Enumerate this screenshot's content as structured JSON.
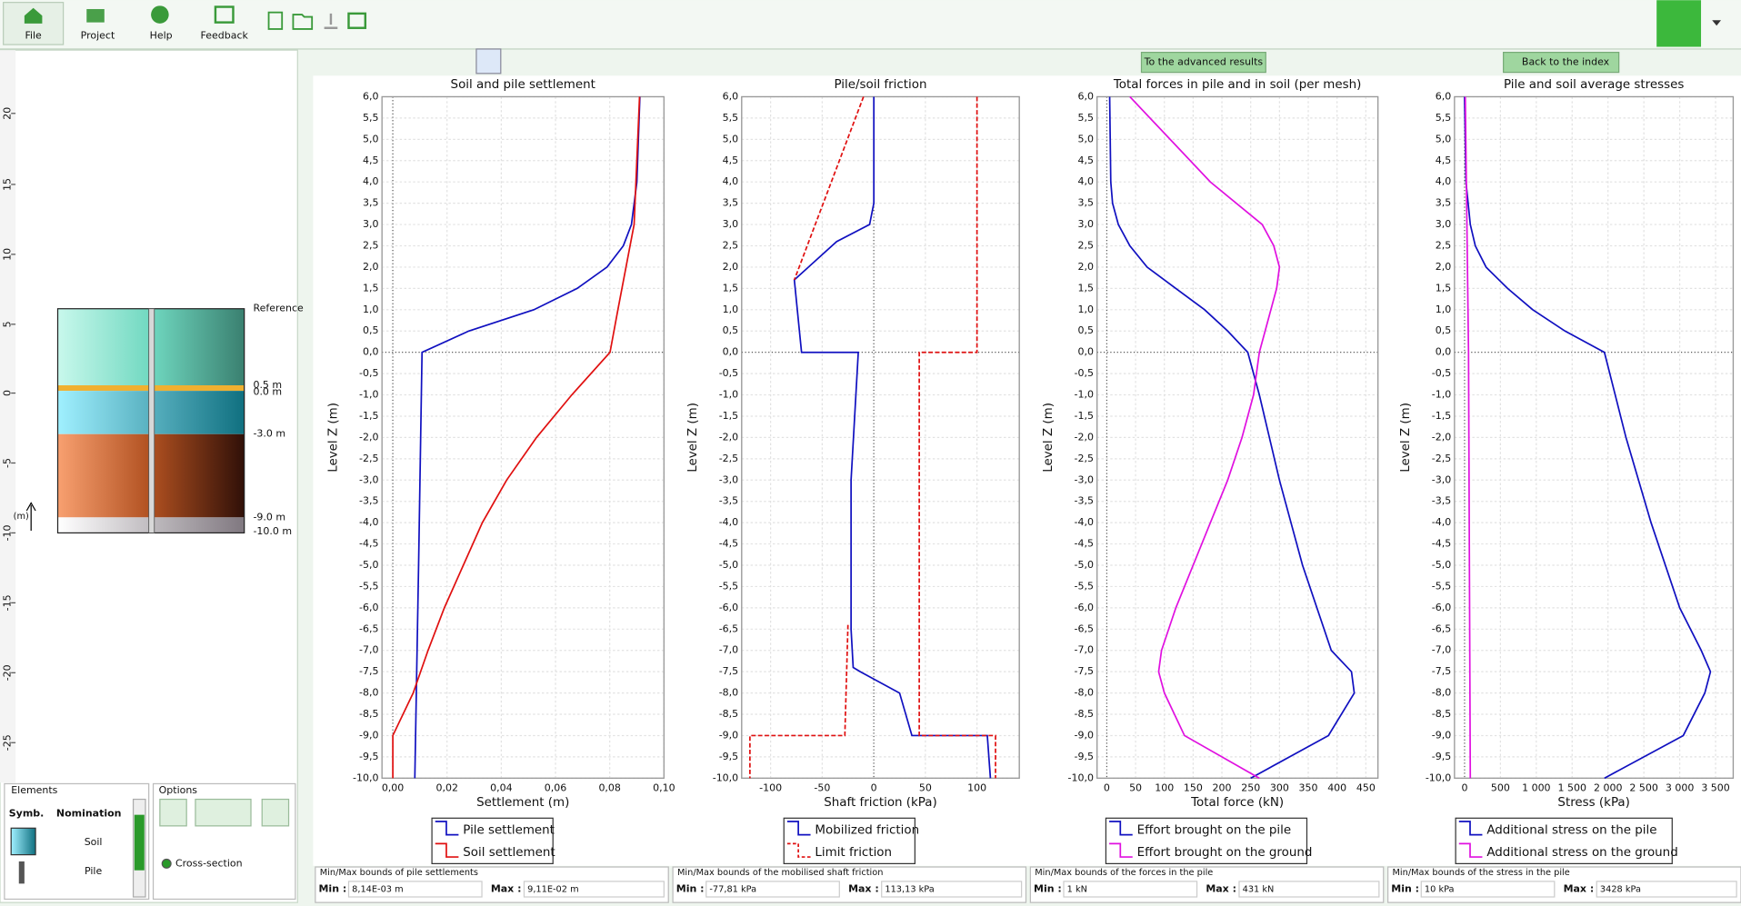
{
  "toolbar": {
    "buttons": [
      "File",
      "Project",
      "Help",
      "Feedback"
    ]
  },
  "buttons": {
    "advanced": "To the advanced results",
    "index": "Back to the index"
  },
  "left_panel": {
    "ruler": [
      "20",
      "15",
      "10",
      "5",
      "0",
      "-5",
      "-10",
      "-15",
      "-20",
      "-25"
    ],
    "profile_labels": [
      "Reference",
      "0.5 m",
      "0.0 m",
      "-3.0 m",
      "-9.0 m",
      "-10.0 m"
    ],
    "axis_unit": "(m)",
    "elements": {
      "title": "Elements",
      "columns": [
        "Symb.",
        "Nomination"
      ],
      "rows": [
        "Soil",
        "Pile"
      ]
    },
    "options": {
      "title": "Options",
      "radio": "Cross-section"
    }
  },
  "level_axis": {
    "label": "Level Z (m)",
    "ylim": [
      -10,
      6
    ],
    "yticks": [
      {
        "value": 6,
        "label": "6,0"
      },
      {
        "value": 5.5,
        "label": "5,5"
      },
      {
        "value": 5,
        "label": "5,0"
      },
      {
        "value": 4.5,
        "label": "4,5"
      },
      {
        "value": 4,
        "label": "4,0"
      },
      {
        "value": 3.5,
        "label": "3,5"
      },
      {
        "value": 3,
        "label": "3,0"
      },
      {
        "value": 2.5,
        "label": "2,5"
      },
      {
        "value": 2,
        "label": "2,0"
      },
      {
        "value": 1.5,
        "label": "1,5"
      },
      {
        "value": 1,
        "label": "1,0"
      },
      {
        "value": 0.5,
        "label": "0,5"
      },
      {
        "value": 0,
        "label": "0,0"
      },
      {
        "value": -0.5,
        "label": "-0,5"
      },
      {
        "value": -1,
        "label": "-1,0"
      },
      {
        "value": -1.5,
        "label": "-1,5"
      },
      {
        "value": -2,
        "label": "-2,0"
      },
      {
        "value": -2.5,
        "label": "-2,5"
      },
      {
        "value": -3,
        "label": "-3,0"
      },
      {
        "value": -3.5,
        "label": "-3,5"
      },
      {
        "value": -4,
        "label": "-4,0"
      },
      {
        "value": -4.5,
        "label": "-4,5"
      },
      {
        "value": -5,
        "label": "-5,0"
      },
      {
        "value": -5.5,
        "label": "-5,5"
      },
      {
        "value": -6,
        "label": "-6,0"
      },
      {
        "value": -6.5,
        "label": "-6,5"
      },
      {
        "value": -7,
        "label": "-7,0"
      },
      {
        "value": -7.5,
        "label": "-7,5"
      },
      {
        "value": -8,
        "label": "-8,0"
      },
      {
        "value": -8.5,
        "label": "-8,5"
      },
      {
        "value": -9,
        "label": "-9,0"
      },
      {
        "value": -9.5,
        "label": "-9,5"
      },
      {
        "value": -10,
        "label": "-10,0"
      }
    ]
  },
  "chart_data": [
    {
      "type": "line",
      "title": "Soil and pile settlement",
      "x_label": "Settlement (m)",
      "xlim": [
        -0.004,
        0.1
      ],
      "xticks": [
        {
          "value": 0,
          "label": "0,00"
        },
        {
          "value": 0.02,
          "label": "0,02"
        },
        {
          "value": 0.04,
          "label": "0,04"
        },
        {
          "value": 0.06,
          "label": "0,06"
        },
        {
          "value": 0.08,
          "label": "0,08"
        },
        {
          "value": 0.1,
          "label": "0,10"
        }
      ],
      "series": [
        {
          "name": "Pile settlement",
          "color": "#1010c0",
          "levels": [
            6,
            4,
            3,
            2.5,
            2,
            1.5,
            1,
            0.5,
            0,
            -5,
            -10
          ],
          "values": [
            0.0911,
            0.09,
            0.088,
            0.085,
            0.079,
            0.068,
            0.052,
            0.028,
            0.0108,
            0.0095,
            0.0081
          ]
        },
        {
          "name": "Soil settlement",
          "color": "#e01010",
          "levels": [
            6,
            3,
            1,
            0,
            -1,
            -2,
            -3,
            -4,
            -5,
            -6,
            -7,
            -8,
            -9,
            -10
          ],
          "values": [
            0.091,
            0.089,
            0.083,
            0.0801,
            0.066,
            0.053,
            0.042,
            0.033,
            0.026,
            0.019,
            0.013,
            0.0075,
            0,
            0
          ]
        }
      ],
      "bounds": {
        "title": "Min/Max bounds of pile settlements",
        "min_label": "Min :",
        "min": "8,14E-03 m",
        "max_label": "Max :",
        "max": "9,11E-02 m"
      }
    },
    {
      "type": "line",
      "title": "Pile/soil friction",
      "x_label": "Shaft friction (kPa)",
      "xlim": [
        -128,
        141
      ],
      "xticks": [
        -100,
        -50,
        0,
        50,
        100
      ],
      "series": [
        {
          "name": "Mobilized friction",
          "color": "#1010c0",
          "levels": [
            6,
            3.5,
            3,
            2.6,
            1.7,
            0,
            0,
            -3,
            -6.5,
            -7.4,
            -7.5,
            -8,
            -9,
            -9,
            -10
          ],
          "values": [
            0,
            0,
            -4,
            -36,
            -77,
            -70,
            -15,
            -22,
            -22,
            -20,
            -13,
            25,
            37,
            110,
            113
          ]
        },
        {
          "name": "Limit friction",
          "color": "#e01010",
          "dash": true,
          "levels": [
            6,
            1.7,
            null,
            6,
            0,
            0,
            -9,
            -9,
            -10,
            null,
            -6.4,
            -9,
            -9,
            -10
          ],
          "values": [
            -10,
            -77,
            null,
            100,
            100,
            44,
            44,
            118,
            118,
            null,
            -25,
            -28,
            -120,
            -120
          ]
        }
      ],
      "bounds": {
        "title": "Min/Max bounds of the mobilised shaft friction",
        "min_label": "Min :",
        "min": "-77,81 kPa",
        "max_label": "Max :",
        "max": "113,13 kPa"
      }
    },
    {
      "type": "line",
      "title": "Total forces in pile and in soil (per mesh)",
      "x_label": "Total force (kN)",
      "xlim": [
        -17,
        471
      ],
      "xticks": [
        0,
        50,
        100,
        150,
        200,
        250,
        300,
        350,
        400,
        450
      ],
      "series": [
        {
          "name": "Effort brought on the pile",
          "color": "#1010c0",
          "levels": [
            6,
            4,
            3.5,
            3,
            2.5,
            2,
            1.5,
            1,
            0.5,
            0,
            -1,
            -3,
            -5,
            -7,
            -7.5,
            -8,
            -9,
            -10
          ],
          "values": [
            5,
            7,
            10,
            20,
            40,
            70,
            120,
            170,
            210,
            245,
            265,
            300,
            340,
            390,
            425,
            430,
            385,
            250
          ]
        },
        {
          "name": "Effort brought on the ground",
          "color": "#e010e0",
          "levels": [
            6,
            4,
            3,
            2.5,
            2,
            1.5,
            1,
            0,
            -1,
            -2,
            -3,
            -4,
            -5,
            -6,
            -7,
            -7.5,
            -8,
            -9,
            -10
          ],
          "values": [
            40,
            180,
            270,
            290,
            300,
            295,
            285,
            265,
            255,
            235,
            210,
            180,
            150,
            120,
            95,
            90,
            100,
            135,
            265
          ]
        }
      ],
      "bounds": {
        "title": "Min/Max bounds of the forces in the pile",
        "min_label": "Min :",
        "min": "1 kN",
        "max_label": "Max :",
        "max": "431 kN"
      }
    },
    {
      "type": "line",
      "title": "Pile and soil average stresses",
      "x_label": "Stress (kPa)",
      "xlim": [
        -140,
        3746
      ],
      "xticks": [
        0,
        500,
        {
          "value": 1000,
          "label": "1 000"
        },
        {
          "value": 1500,
          "label": "1 500"
        },
        {
          "value": 2000,
          "label": "2 000"
        },
        {
          "value": 2500,
          "label": "2 500"
        },
        {
          "value": 3000,
          "label": "3 000"
        },
        {
          "value": 3500,
          "label": "3 500"
        }
      ],
      "series": [
        {
          "name": "Additional stress on the pile",
          "color": "#1010c0",
          "levels": [
            6,
            4,
            3,
            2.5,
            2,
            1.5,
            1,
            0.5,
            0,
            -2,
            -4,
            -6,
            -7,
            -7.5,
            -8,
            -9,
            -10
          ],
          "values": [
            0,
            20,
            80,
            150,
            300,
            600,
            950,
            1400,
            1950,
            2250,
            2600,
            3000,
            3300,
            3428,
            3350,
            3050,
            1950
          ]
        },
        {
          "name": "Additional stress on the ground",
          "color": "#e010e0",
          "levels": [
            6,
            0,
            -10
          ],
          "values": [
            10,
            55,
            80
          ]
        }
      ],
      "bounds": {
        "title": "Min/Max bounds of the stress in the pile",
        "min_label": "Min :",
        "min": "10 kPa",
        "max_label": "Max :",
        "max": "3428 kPa"
      }
    }
  ]
}
